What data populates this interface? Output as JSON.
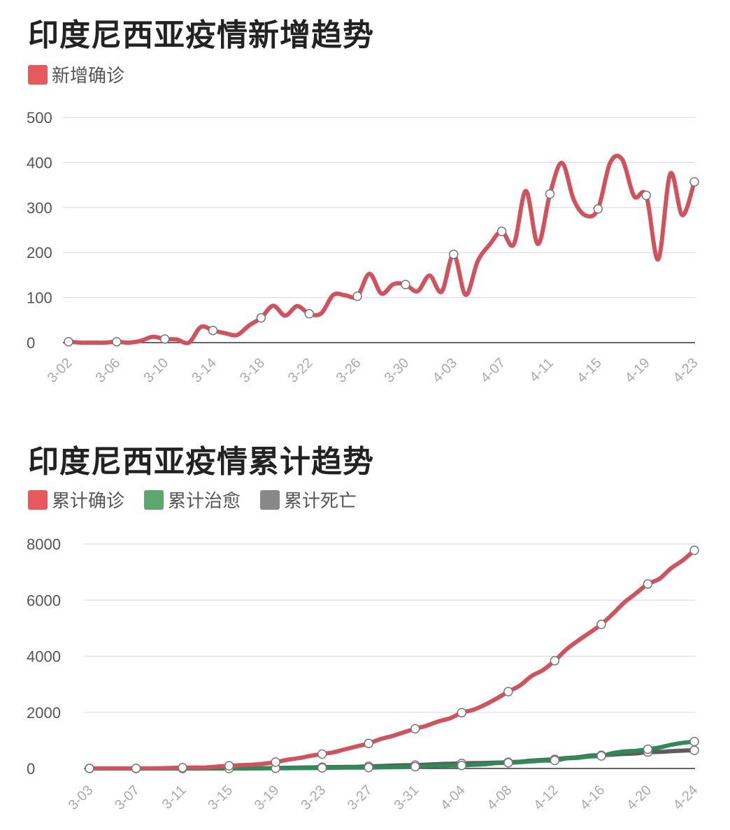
{
  "chart_data": [
    {
      "type": "line",
      "title": "印度尼西亚疫情新增趋势",
      "xlabel": "",
      "ylabel": "",
      "ylim": [
        0,
        500
      ],
      "yticks": [
        0,
        100,
        200,
        300,
        400,
        500
      ],
      "grid": true,
      "legend_position": "top-left",
      "x": [
        "3-02",
        "3-03",
        "3-04",
        "3-05",
        "3-06",
        "3-07",
        "3-08",
        "3-09",
        "3-10",
        "3-11",
        "3-12",
        "3-13",
        "3-14",
        "3-15",
        "3-16",
        "3-17",
        "3-18",
        "3-19",
        "3-20",
        "3-21",
        "3-22",
        "3-23",
        "3-24",
        "3-25",
        "3-26",
        "3-27",
        "3-28",
        "3-29",
        "3-30",
        "3-31",
        "4-01",
        "4-02",
        "4-03",
        "4-04",
        "4-05",
        "4-06",
        "4-07",
        "4-08",
        "4-09",
        "4-10",
        "4-11",
        "4-12",
        "4-13",
        "4-14",
        "4-15",
        "4-16",
        "4-17",
        "4-18",
        "4-19",
        "4-20",
        "4-21",
        "4-22",
        "4-23"
      ],
      "x_tick_labels": [
        "3-02",
        "3-06",
        "3-10",
        "3-14",
        "3-18",
        "3-22",
        "3-26",
        "3-30",
        "4-03",
        "4-07",
        "4-11",
        "4-15",
        "4-19",
        "4-23"
      ],
      "series": [
        {
          "name": "新增确诊",
          "color": "#e8595e",
          "line_color": "#d4505c",
          "values": [
            2,
            0,
            0,
            0,
            2,
            0,
            4,
            13,
            8,
            7,
            0,
            35,
            27,
            21,
            17,
            38,
            55,
            82,
            60,
            81,
            64,
            65,
            106,
            105,
            103,
            153,
            109,
            130,
            129,
            114,
            149,
            113,
            196,
            106,
            181,
            218,
            247,
            218,
            337,
            219,
            330,
            399,
            316,
            282,
            297,
            399,
            407,
            325,
            327,
            185,
            375,
            283,
            357
          ]
        }
      ]
    },
    {
      "type": "line",
      "title": "印度尼西亚疫情累计趋势",
      "xlabel": "",
      "ylabel": "",
      "ylim": [
        0,
        8000
      ],
      "yticks": [
        0,
        2000,
        4000,
        6000,
        8000
      ],
      "grid": true,
      "legend_position": "top-left",
      "x": [
        "3-03",
        "3-04",
        "3-05",
        "3-06",
        "3-07",
        "3-08",
        "3-09",
        "3-10",
        "3-11",
        "3-12",
        "3-13",
        "3-14",
        "3-15",
        "3-16",
        "3-17",
        "3-18",
        "3-19",
        "3-20",
        "3-21",
        "3-22",
        "3-23",
        "3-24",
        "3-25",
        "3-26",
        "3-27",
        "3-28",
        "3-29",
        "3-30",
        "3-31",
        "4-01",
        "4-02",
        "4-03",
        "4-04",
        "4-05",
        "4-06",
        "4-07",
        "4-08",
        "4-09",
        "4-10",
        "4-11",
        "4-12",
        "4-13",
        "4-14",
        "4-15",
        "4-16",
        "4-17",
        "4-18",
        "4-19",
        "4-20",
        "4-21",
        "4-22",
        "4-23",
        "4-24"
      ],
      "x_tick_labels": [
        "3-03",
        "3-07",
        "3-11",
        "3-15",
        "3-19",
        "3-23",
        "3-27",
        "3-31",
        "4-04",
        "4-08",
        "4-12",
        "4-16",
        "4-20",
        "4-24"
      ],
      "series": [
        {
          "name": "累计确诊",
          "color": "#e8595e",
          "line_color": "#d4505c",
          "values": [
            2,
            2,
            2,
            2,
            4,
            4,
            6,
            19,
            27,
            34,
            34,
            69,
            96,
            117,
            134,
            172,
            227,
            309,
            369,
            450,
            514,
            579,
            686,
            790,
            893,
            1046,
            1155,
            1285,
            1414,
            1528,
            1677,
            1790,
            1986,
            2092,
            2273,
            2491,
            2738,
            2956,
            3293,
            3512,
            3842,
            4241,
            4557,
            4839,
            5136,
            5516,
            5923,
            6248,
            6575,
            6760,
            7135,
            7418,
            7775
          ]
        },
        {
          "name": "累计治愈",
          "color": "#5aa86c",
          "line_color": "#2e8b57",
          "values": [
            0,
            0,
            0,
            0,
            0,
            0,
            0,
            0,
            0,
            0,
            0,
            0,
            0,
            0,
            2,
            5,
            8,
            10,
            13,
            15,
            20,
            25,
            29,
            30,
            31,
            40,
            46,
            56,
            64,
            75,
            93,
            103,
            107,
            130,
            150,
            192,
            204,
            222,
            252,
            282,
            286,
            359,
            380,
            426,
            446,
            548,
            607,
            631,
            686,
            747,
            842,
            913,
            960
          ]
        },
        {
          "name": "累计死亡",
          "color": "#888888",
          "line_color": "#5c5c5c",
          "values": [
            0,
            0,
            0,
            0,
            0,
            0,
            0,
            0,
            1,
            1,
            1,
            4,
            5,
            5,
            5,
            7,
            19,
            25,
            32,
            38,
            48,
            49,
            55,
            58,
            78,
            87,
            102,
            114,
            122,
            136,
            157,
            170,
            181,
            191,
            198,
            209,
            221,
            240,
            280,
            306,
            327,
            373,
            399,
            459,
            469,
            496,
            520,
            535,
            582,
            590,
            616,
            635,
            647
          ]
        }
      ]
    }
  ]
}
